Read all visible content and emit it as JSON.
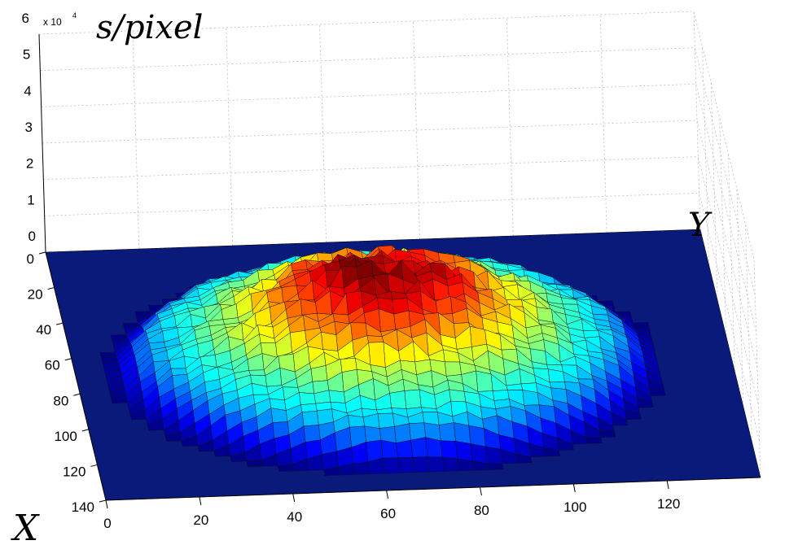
{
  "chart_data": {
    "type": "surface3d",
    "title": "s/pixel",
    "xlabel": "X",
    "ylabel": "Y",
    "zlabel": "s/pixel",
    "z_multiplier_label": "x 10",
    "z_multiplier_exponent": "4",
    "x_ticks": [
      "0",
      "20",
      "40",
      "60",
      "80",
      "100",
      "120",
      "140"
    ],
    "y_ticks": [
      "0",
      "20",
      "40",
      "60",
      "80",
      "100",
      "120"
    ],
    "z_ticks": [
      "0",
      "1",
      "2",
      "3",
      "4",
      "5",
      "6"
    ],
    "xlim": [
      0,
      140
    ],
    "ylim": [
      0,
      140
    ],
    "zlim": [
      0,
      60000
    ],
    "grid": true,
    "colormap": "jet",
    "floor_color": "#0a1a7a",
    "surface": {
      "shape": "dome",
      "center_x": 72,
      "center_y": 66,
      "radius": 58,
      "peak_value": 28000,
      "profile_samples": [
        {
          "radius": 0,
          "value": 28000
        },
        {
          "radius": 10,
          "value": 26000
        },
        {
          "radius": 20,
          "value": 22000
        },
        {
          "radius": 30,
          "value": 17000
        },
        {
          "radius": 40,
          "value": 12000
        },
        {
          "radius": 50,
          "value": 8000
        },
        {
          "radius": 58,
          "value": 0
        }
      ],
      "outside_value": 0
    }
  }
}
